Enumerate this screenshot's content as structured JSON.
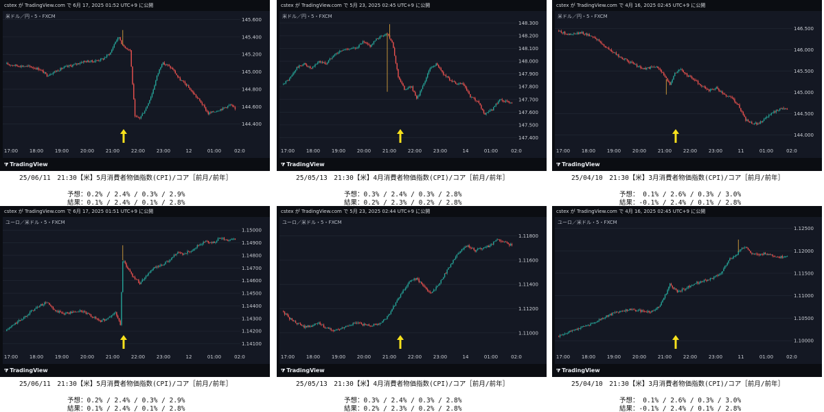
{
  "colors": {
    "up": "#26a69a",
    "down": "#ef5350",
    "arrow": "#f7e11c",
    "background": "#141823",
    "grid": "#232a37"
  },
  "icons": {
    "tv_logo": "tradingview-logo-icon",
    "arrow": "up-arrow-icon"
  },
  "x_ticks": [
    "17:00",
    "18:00",
    "19:00",
    "20:00",
    "21:00",
    "22:00",
    "23:00",
    "12",
    "01:00",
    "02:0"
  ],
  "panels": [
    {
      "published": "cstex が TradingView.com で 6月 17, 2025 01:52 UTC+9 に公開",
      "symbol": "米ドル／円・5・FXCM",
      "brand": "TradingView",
      "caption": {
        "title": "25/06/11　21:30【米】5月消費者物価指数(CPI)/コア［前月/前年］",
        "forecast": "予想：0.2% / 2.4% / 0.3% / 2.9%",
        "result": "結果：0.1% / 2.4% / 0.1% / 2.8%"
      },
      "chart_data": {
        "type": "candlestick",
        "pair": "USD/JPY",
        "y_ticks": [
          "145.600",
          "145.400",
          "145.200",
          "145.000",
          "144.800",
          "144.600",
          "144.400"
        ],
        "ylim": [
          144.2,
          145.62
        ],
        "x_ticks": [
          "17:00",
          "18:00",
          "19:00",
          "20:00",
          "21:00",
          "22:00",
          "23:00",
          "12",
          "01:00",
          "02:0"
        ],
        "event_time": "21:30",
        "path": [
          [
            0,
            145.09
          ],
          [
            10,
            145.07
          ],
          [
            20,
            145.06
          ],
          [
            28,
            145.03
          ],
          [
            34,
            144.96
          ],
          [
            40,
            145.0
          ],
          [
            48,
            145.05
          ],
          [
            56,
            145.08
          ],
          [
            64,
            145.12
          ],
          [
            72,
            145.12
          ],
          [
            80,
            145.15
          ],
          [
            86,
            145.22
          ],
          [
            90,
            145.35
          ],
          [
            93,
            145.4
          ],
          [
            96,
            145.3
          ],
          [
            102,
            145.25
          ],
          [
            106,
            144.48
          ],
          [
            110,
            144.47
          ],
          [
            115,
            144.58
          ],
          [
            120,
            144.75
          ],
          [
            124,
            144.95
          ],
          [
            128,
            145.1
          ],
          [
            132,
            145.08
          ],
          [
            137,
            145.03
          ],
          [
            142,
            144.92
          ],
          [
            148,
            144.85
          ],
          [
            154,
            144.75
          ],
          [
            160,
            144.65
          ],
          [
            166,
            144.52
          ],
          [
            172,
            144.55
          ],
          [
            178,
            144.58
          ],
          [
            184,
            144.62
          ],
          [
            188,
            144.57
          ]
        ],
        "spikes": [
          [
            96,
            145.48
          ]
        ]
      }
    },
    {
      "published": "cstex が TradingView.com で 5月 23, 2025 02:45 UTC+9 に公開",
      "symbol": "米ドル／円・5・FXCM",
      "brand": "TradingView",
      "caption": {
        "title": "25/05/13　21:30【米】4月消費者物価指数(CPI)/コア［前月/前年］",
        "forecast": "予想：0.3% / 2.4% / 0.3% / 2.8%",
        "result": "結果：0.2% / 2.3% / 0.2% / 2.8%"
      },
      "chart_data": {
        "type": "candlestick",
        "pair": "USD/JPY",
        "y_ticks": [
          "148.300",
          "148.200",
          "148.100",
          "148.000",
          "147.900",
          "147.800",
          "147.700",
          "147.600",
          "147.500",
          "147.400"
        ],
        "ylim": [
          147.37,
          148.34
        ],
        "x_ticks": [
          "17:00",
          "18:00",
          "19:00",
          "20:00",
          "21:00",
          "22:00",
          "23:00",
          "14",
          "01:00",
          "02:0"
        ],
        "event_time": "21:30",
        "path": [
          [
            0,
            147.82
          ],
          [
            6,
            147.86
          ],
          [
            12,
            147.95
          ],
          [
            18,
            147.98
          ],
          [
            24,
            147.94
          ],
          [
            30,
            148.0
          ],
          [
            36,
            147.98
          ],
          [
            42,
            148.05
          ],
          [
            48,
            148.08
          ],
          [
            54,
            148.1
          ],
          [
            60,
            148.1
          ],
          [
            66,
            148.15
          ],
          [
            72,
            148.12
          ],
          [
            78,
            148.18
          ],
          [
            86,
            148.22
          ],
          [
            90,
            148.15
          ],
          [
            95,
            147.88
          ],
          [
            100,
            147.78
          ],
          [
            106,
            147.8
          ],
          [
            110,
            147.7
          ],
          [
            116,
            147.82
          ],
          [
            120,
            147.93
          ],
          [
            126,
            147.98
          ],
          [
            132,
            147.9
          ],
          [
            138,
            147.85
          ],
          [
            142,
            147.82
          ],
          [
            148,
            147.82
          ],
          [
            154,
            147.72
          ],
          [
            160,
            147.68
          ],
          [
            166,
            147.58
          ],
          [
            172,
            147.62
          ],
          [
            178,
            147.7
          ],
          [
            184,
            147.68
          ]
        ],
        "spikes": [
          [
            88,
            148.29
          ],
          [
            86,
            147.76
          ]
        ]
      }
    },
    {
      "published": "cstex が TradingView.com で 4月 16, 2025 02:45 UTC+9 に公開",
      "symbol": "米ドル／円・5・FXCM",
      "brand": "TradingView",
      "caption": {
        "title": "25/04/10　21:30【米】3月消費者物価指数(CPI)/コア［前月/前年］",
        "forecast": "予想： 0.1% / 2.6% / 0.3% / 3.0%",
        "result": "結果：-0.1% / 2.4% / 0.1% / 2.8%"
      },
      "chart_data": {
        "type": "candlestick",
        "pair": "USD/JPY",
        "y_ticks": [
          "146.500",
          "146.000",
          "145.500",
          "145.000",
          "144.500",
          "144.000"
        ],
        "ylim": [
          143.85,
          146.75
        ],
        "x_ticks": [
          "17:00",
          "18:00",
          "19:00",
          "20:00",
          "21:00",
          "22:00",
          "23:00",
          "11",
          "01:00",
          "02:0"
        ],
        "event_time": "21:30",
        "path": [
          [
            0,
            146.45
          ],
          [
            10,
            146.35
          ],
          [
            20,
            146.4
          ],
          [
            30,
            146.3
          ],
          [
            40,
            146.05
          ],
          [
            50,
            145.85
          ],
          [
            60,
            145.7
          ],
          [
            70,
            145.55
          ],
          [
            80,
            145.6
          ],
          [
            84,
            145.55
          ],
          [
            88,
            145.35
          ],
          [
            92,
            145.2
          ],
          [
            96,
            145.45
          ],
          [
            100,
            145.55
          ],
          [
            106,
            145.4
          ],
          [
            112,
            145.3
          ],
          [
            118,
            145.15
          ],
          [
            124,
            145.05
          ],
          [
            130,
            145.1
          ],
          [
            136,
            144.95
          ],
          [
            142,
            144.9
          ],
          [
            148,
            144.7
          ],
          [
            154,
            144.35
          ],
          [
            160,
            144.25
          ],
          [
            166,
            144.3
          ],
          [
            172,
            144.45
          ],
          [
            178,
            144.55
          ],
          [
            184,
            144.65
          ],
          [
            188,
            144.6
          ]
        ],
        "spikes": [
          [
            89,
            144.95
          ]
        ]
      }
    },
    {
      "published": "cstex が TradingView.com で 6月 17, 2025 01:51 UTC+9 に公開",
      "symbol": "ユーロ／米ドル・5・FXCM",
      "brand": "TradingView",
      "caption": {
        "title": "25/06/11　21:30【米】5月消費者物価指数(CPI)/コア［前月/前年］",
        "forecast": "予想：0.2% / 2.4% / 0.3% / 2.9%",
        "result": "結果：0.1% / 2.4% / 0.1% / 2.8%"
      },
      "chart_data": {
        "type": "candlestick",
        "pair": "EUR/USD",
        "y_ticks": [
          "1.15000",
          "1.14900",
          "1.14800",
          "1.14700",
          "1.14600",
          "1.14500",
          "1.14400",
          "1.14300",
          "1.14200",
          "1.14100"
        ],
        "ylim": [
          1.1407,
          1.1505
        ],
        "x_ticks": [
          "17:00",
          "18:00",
          "19:00",
          "20:00",
          "21:00",
          "22:00",
          "23:00",
          "12",
          "01:00",
          "02:0"
        ],
        "event_time": "21:30",
        "path": [
          [
            0,
            1.142
          ],
          [
            8,
            1.1426
          ],
          [
            14,
            1.143
          ],
          [
            20,
            1.1435
          ],
          [
            28,
            1.144
          ],
          [
            34,
            1.1443
          ],
          [
            40,
            1.1436
          ],
          [
            48,
            1.1434
          ],
          [
            56,
            1.1435
          ],
          [
            62,
            1.1436
          ],
          [
            70,
            1.1432
          ],
          [
            78,
            1.1428
          ],
          [
            84,
            1.143
          ],
          [
            90,
            1.1435
          ],
          [
            94,
            1.1425
          ],
          [
            96,
            1.1476
          ],
          [
            100,
            1.147
          ],
          [
            104,
            1.1464
          ],
          [
            110,
            1.1458
          ],
          [
            116,
            1.1465
          ],
          [
            122,
            1.147
          ],
          [
            128,
            1.1472
          ],
          [
            134,
            1.1476
          ],
          [
            140,
            1.1482
          ],
          [
            146,
            1.1481
          ],
          [
            152,
            1.1484
          ],
          [
            158,
            1.1488
          ],
          [
            164,
            1.1491
          ],
          [
            170,
            1.149
          ],
          [
            176,
            1.1494
          ],
          [
            182,
            1.1492
          ],
          [
            188,
            1.1493
          ]
        ],
        "spikes": [
          [
            96,
            1.1488
          ]
        ]
      }
    },
    {
      "published": "cstex が TradingView.com で 5月 23, 2025 02:44 UTC+9 に公開",
      "symbol": "ユーロ／米ドル・5・FXCM",
      "brand": "TradingView",
      "caption": {
        "title": "25/05/13　21:30【米】4月消費者物価指数(CPI)/コア［前月/前年］",
        "forecast": "予想：0.3% / 2.4% / 0.3% / 2.8%",
        "result": "結果：0.2% / 2.3% / 0.2% / 2.8%"
      },
      "chart_data": {
        "type": "candlestick",
        "pair": "EUR/USD",
        "y_ticks": [
          "1.11800",
          "1.11600",
          "1.11400",
          "1.11200",
          "1.11000"
        ],
        "ylim": [
          1.1088,
          1.119
        ],
        "x_ticks": [
          "17:00",
          "18:00",
          "19:00",
          "20:00",
          "21:00",
          "22:00",
          "23:00",
          "14",
          "01:00",
          "02:0"
        ],
        "event_time": "21:30",
        "path": [
          [
            0,
            1.1118
          ],
          [
            6,
            1.1112
          ],
          [
            12,
            1.1108
          ],
          [
            18,
            1.1105
          ],
          [
            24,
            1.1106
          ],
          [
            30,
            1.1108
          ],
          [
            36,
            1.1104
          ],
          [
            42,
            1.1102
          ],
          [
            48,
            1.1103
          ],
          [
            54,
            1.1106
          ],
          [
            60,
            1.1108
          ],
          [
            66,
            1.1107
          ],
          [
            72,
            1.1106
          ],
          [
            80,
            1.1108
          ],
          [
            86,
            1.1113
          ],
          [
            92,
            1.1123
          ],
          [
            98,
            1.1133
          ],
          [
            104,
            1.1142
          ],
          [
            110,
            1.1145
          ],
          [
            116,
            1.1138
          ],
          [
            122,
            1.1133
          ],
          [
            128,
            1.114
          ],
          [
            134,
            1.115
          ],
          [
            140,
            1.116
          ],
          [
            146,
            1.1168
          ],
          [
            152,
            1.1172
          ],
          [
            158,
            1.1168
          ],
          [
            164,
            1.117
          ],
          [
            170,
            1.1172
          ],
          [
            176,
            1.1177
          ],
          [
            182,
            1.1175
          ],
          [
            188,
            1.1172
          ]
        ],
        "spikes": []
      }
    },
    {
      "published": "cstex が TradingView.com で 4月 16, 2025 02:45 UTC+9 に公開",
      "symbol": "ユーロ／米ドル・5・FXCM",
      "brand": "TradingView",
      "caption": {
        "title": "25/04/10　21:30【米】3月消費者物価指数(CPI)/コア［前月/前年］",
        "forecast": "予想： 0.1% / 2.6% / 0.3% / 3.0%",
        "result": "結果：-0.1% / 2.4% / 0.1% / 2.8%"
      },
      "chart_data": {
        "type": "candlestick",
        "pair": "EUR/USD",
        "y_ticks": [
          "1.12500",
          "1.12000",
          "1.11500",
          "1.11000",
          "1.10500",
          "1.10000"
        ],
        "ylim": [
          1.0985,
          1.126
        ],
        "x_ticks": [
          "17:00",
          "18:00",
          "19:00",
          "20:00",
          "21:00",
          "22:00",
          "23:00",
          "11",
          "01:00",
          "02:0"
        ],
        "event_time": "21:30",
        "path": [
          [
            0,
            1.101
          ],
          [
            10,
            1.102
          ],
          [
            20,
            1.103
          ],
          [
            30,
            1.104
          ],
          [
            40,
            1.1055
          ],
          [
            50,
            1.1065
          ],
          [
            60,
            1.107
          ],
          [
            70,
            1.1065
          ],
          [
            78,
            1.1065
          ],
          [
            84,
            1.108
          ],
          [
            88,
            1.11
          ],
          [
            92,
            1.1125
          ],
          [
            98,
            1.111
          ],
          [
            104,
            1.1115
          ],
          [
            110,
            1.1125
          ],
          [
            116,
            1.113
          ],
          [
            122,
            1.1135
          ],
          [
            128,
            1.114
          ],
          [
            134,
            1.115
          ],
          [
            140,
            1.118
          ],
          [
            146,
            1.119
          ],
          [
            150,
            1.1205
          ],
          [
            154,
            1.121
          ],
          [
            158,
            1.1195
          ],
          [
            164,
            1.119
          ],
          [
            170,
            1.1195
          ],
          [
            176,
            1.119
          ],
          [
            182,
            1.1185
          ],
          [
            188,
            1.119
          ]
        ],
        "spikes": [
          [
            148,
            1.1225
          ]
        ]
      }
    }
  ]
}
